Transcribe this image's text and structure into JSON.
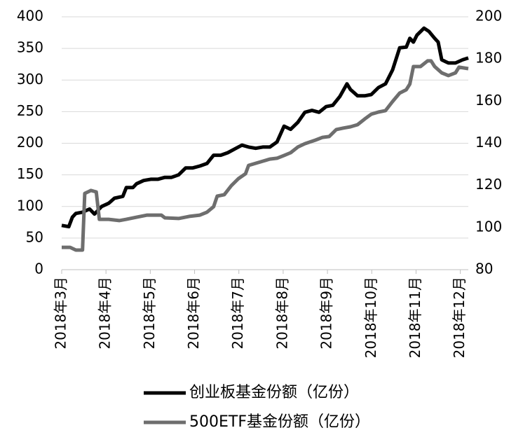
{
  "chart_data": {
    "type": "line",
    "xlim": [
      3,
      12.18
    ],
    "xticks": [
      {
        "value": 3,
        "label": "2018年3月"
      },
      {
        "value": 4,
        "label": "2018年4月"
      },
      {
        "value": 5,
        "label": "2018年5月"
      },
      {
        "value": 6,
        "label": "2018年6月"
      },
      {
        "value": 7,
        "label": "2018年7月"
      },
      {
        "value": 8,
        "label": "2018年8月"
      },
      {
        "value": 9,
        "label": "2018年9月"
      },
      {
        "value": 10,
        "label": "2018年10月"
      },
      {
        "value": 11,
        "label": "2018年11月"
      },
      {
        "value": 12,
        "label": "2018年12月"
      }
    ],
    "ylim": [
      0,
      400
    ],
    "yticks": [
      0,
      50,
      100,
      150,
      200,
      250,
      300,
      350,
      400
    ],
    "y2lim": [
      80,
      200
    ],
    "y2ticks": [
      80,
      100,
      120,
      140,
      160,
      180,
      200
    ],
    "grid": true,
    "legend": "bottom",
    "series": [
      {
        "name": "创业板基金份额（亿份）",
        "color": "#000000",
        "axis": "y",
        "x": [
          3.0,
          3.16,
          3.24,
          3.32,
          3.47,
          3.63,
          3.74,
          3.9,
          4.06,
          4.19,
          4.38,
          4.46,
          4.61,
          4.69,
          4.85,
          5.01,
          5.17,
          5.33,
          5.48,
          5.64,
          5.8,
          5.96,
          6.12,
          6.28,
          6.43,
          6.59,
          6.75,
          6.91,
          7.07,
          7.22,
          7.38,
          7.54,
          7.7,
          7.86,
          8.02,
          8.17,
          8.33,
          8.49,
          8.65,
          8.81,
          8.97,
          9.12,
          9.28,
          9.44,
          9.52,
          9.68,
          9.84,
          9.99,
          10.15,
          10.31,
          10.47,
          10.63,
          10.78,
          10.86,
          10.94,
          11.02,
          11.18,
          11.29,
          11.42,
          11.5,
          11.58,
          11.73,
          11.89,
          12.05,
          12.18
        ],
        "values": [
          70,
          68,
          83,
          89,
          91,
          96,
          88,
          100,
          105,
          113,
          116,
          130,
          130,
          136,
          141,
          143,
          143,
          146,
          146,
          150,
          161,
          161,
          164,
          168,
          181,
          181,
          185,
          191,
          197,
          194,
          192,
          194,
          194,
          202,
          227,
          222,
          233,
          249,
          252,
          249,
          258,
          260,
          274,
          294,
          285,
          275,
          275,
          277,
          288,
          294,
          316,
          351,
          352,
          366,
          360,
          371,
          382,
          377,
          366,
          360,
          332,
          327,
          327,
          332,
          335
        ]
      },
      {
        "name": "500ETF基金份额（亿份）",
        "color": "#6e6e6e",
        "axis": "y2",
        "x": [
          3.0,
          3.19,
          3.32,
          3.47,
          3.52,
          3.66,
          3.78,
          3.85,
          4.06,
          4.3,
          4.46,
          4.69,
          4.93,
          5.25,
          5.33,
          5.64,
          5.88,
          6.12,
          6.28,
          6.43,
          6.51,
          6.67,
          6.83,
          6.99,
          7.15,
          7.22,
          7.38,
          7.54,
          7.7,
          7.86,
          8.02,
          8.17,
          8.33,
          8.49,
          8.73,
          8.89,
          9.04,
          9.2,
          9.36,
          9.52,
          9.68,
          9.84,
          9.99,
          10.15,
          10.31,
          10.47,
          10.63,
          10.78,
          10.86,
          10.94,
          11.1,
          11.26,
          11.34,
          11.42,
          11.58,
          11.73,
          11.89,
          11.97,
          12.18
        ],
        "values": [
          90.6,
          90.6,
          89.3,
          89.3,
          116.2,
          117.6,
          116.9,
          103.9,
          103.9,
          103.3,
          103.9,
          104.9,
          105.9,
          105.9,
          104.6,
          104.3,
          105.3,
          105.9,
          107.3,
          109.9,
          114.9,
          115.6,
          119.9,
          123.2,
          125.5,
          129.5,
          130.5,
          131.5,
          132.5,
          132.9,
          134.2,
          135.5,
          138.2,
          139.8,
          141.5,
          142.8,
          143.2,
          146.5,
          147.2,
          147.8,
          148.8,
          151.5,
          153.8,
          154.8,
          155.5,
          159.8,
          163.8,
          165.4,
          168.1,
          176.4,
          176.4,
          179.1,
          179.1,
          176.4,
          173.4,
          172.1,
          173.4,
          176.1,
          175.4
        ]
      }
    ]
  }
}
